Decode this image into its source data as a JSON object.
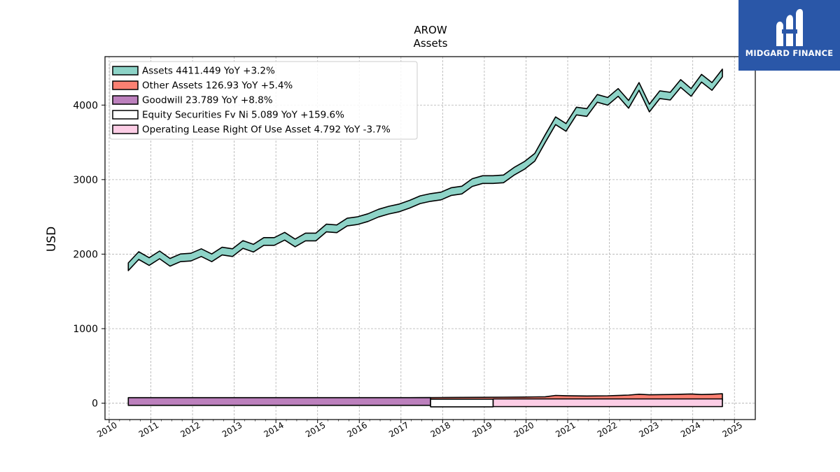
{
  "brand": {
    "name": "MIDGARD FINANCE",
    "color": "#2a57a8"
  },
  "chart_data": {
    "type": "area",
    "title": "AROW",
    "subtitle": "Assets",
    "ylabel": "USD",
    "xlabel": "",
    "xlim": [
      2009.9,
      2025.5
    ],
    "ylim": [
      -220,
      4650
    ],
    "x_ticks": [
      2010,
      2011,
      2012,
      2013,
      2014,
      2015,
      2016,
      2017,
      2018,
      2019,
      2020,
      2021,
      2022,
      2023,
      2024,
      2025
    ],
    "y_ticks": [
      0,
      1000,
      2000,
      3000,
      4000
    ],
    "grid": true,
    "legend_position": "top-left",
    "series": [
      {
        "name": "Assets",
        "legend": "Assets  4411.449 YoY +3.2%",
        "color": "#8dd3c7",
        "kind": "band",
        "x": [
          2010.46,
          2010.71,
          2010.96,
          2011.21,
          2011.46,
          2011.71,
          2011.96,
          2012.21,
          2012.46,
          2012.71,
          2012.96,
          2013.21,
          2013.46,
          2013.71,
          2013.96,
          2014.21,
          2014.46,
          2014.71,
          2014.96,
          2015.21,
          2015.46,
          2015.71,
          2015.96,
          2016.21,
          2016.46,
          2016.71,
          2016.96,
          2017.21,
          2017.46,
          2017.71,
          2017.96,
          2018.21,
          2018.46,
          2018.71,
          2018.96,
          2019.21,
          2019.46,
          2019.71,
          2019.96,
          2020.21,
          2020.46,
          2020.71,
          2020.96,
          2021.21,
          2021.46,
          2021.71,
          2021.96,
          2022.21,
          2022.46,
          2022.71,
          2022.96,
          2023.21,
          2023.46,
          2023.71,
          2023.96,
          2024.21,
          2024.46,
          2024.71
        ],
        "values": [
          1830,
          1980,
          1900,
          1990,
          1890,
          1950,
          1960,
          2020,
          1950,
          2040,
          2020,
          2130,
          2080,
          2170,
          2170,
          2240,
          2150,
          2230,
          2230,
          2350,
          2340,
          2430,
          2450,
          2490,
          2550,
          2590,
          2620,
          2670,
          2730,
          2760,
          2780,
          2840,
          2860,
          2960,
          3000,
          3000,
          3010,
          3110,
          3190,
          3300,
          3550,
          3790,
          3700,
          3920,
          3900,
          4090,
          4050,
          4170,
          4010,
          4250,
          3960,
          4140,
          4120,
          4290,
          4170,
          4360,
          4250,
          4430
        ]
      },
      {
        "name": "Other Assets",
        "legend": "Other Assets  126.93 YoY +5.4%",
        "color": "#fb8072",
        "kind": "stack",
        "x": [
          2010.46,
          2010.96,
          2011.46,
          2011.96,
          2012.46,
          2012.96,
          2013.46,
          2013.96,
          2014.46,
          2014.96,
          2015.46,
          2015.96,
          2016.46,
          2016.96,
          2017.46,
          2017.96,
          2018.46,
          2018.96,
          2019.46,
          2019.96,
          2020.46,
          2020.71,
          2020.96,
          2021.46,
          2021.96,
          2022.46,
          2022.71,
          2022.96,
          2023.46,
          2023.96,
          2024.21,
          2024.46,
          2024.71
        ],
        "values": [
          18,
          20,
          24,
          27,
          27,
          26,
          24,
          23,
          30,
          34,
          32,
          35,
          33,
          35,
          37,
          38,
          39,
          40,
          42,
          44,
          46,
          62,
          60,
          58,
          62,
          70,
          80,
          72,
          78,
          86,
          80,
          84,
          88
        ],
        "base": [
          25,
          25,
          35,
          38,
          37,
          37,
          36,
          36,
          36,
          35,
          36,
          36,
          35,
          37,
          37,
          38,
          38,
          38,
          38,
          38,
          40,
          42,
          40,
          38,
          37,
          38,
          40,
          40,
          38,
          37,
          36,
          36,
          38
        ]
      },
      {
        "name": "Goodwill",
        "legend": "Goodwill  23.789 YoY +8.8%",
        "color": "#bc80bd",
        "kind": "band",
        "x": [
          2010.46,
          2011.46,
          2012.46,
          2013.46,
          2014.46,
          2015.46,
          2016.46,
          2017.46,
          2017.71
        ],
        "values": [
          22,
          22,
          22,
          22,
          22,
          22,
          22,
          22,
          22
        ]
      },
      {
        "name": "Equity Securities Fv Ni",
        "legend": "Equity Securities Fv Ni  5.089 YoY +159.6%",
        "color": "#ffffff",
        "kind": "band",
        "x": [
          2017.71,
          2019.21
        ],
        "values": [
          2,
          2
        ]
      },
      {
        "name": "Operating Lease Right Of Use Asset",
        "legend": "Operating Lease Right Of Use Asset  4.792 YoY -3.7%",
        "color": "#fccde5",
        "kind": "band",
        "x": [
          2019.21,
          2024.71
        ],
        "values": [
          5,
          5
        ]
      }
    ]
  }
}
